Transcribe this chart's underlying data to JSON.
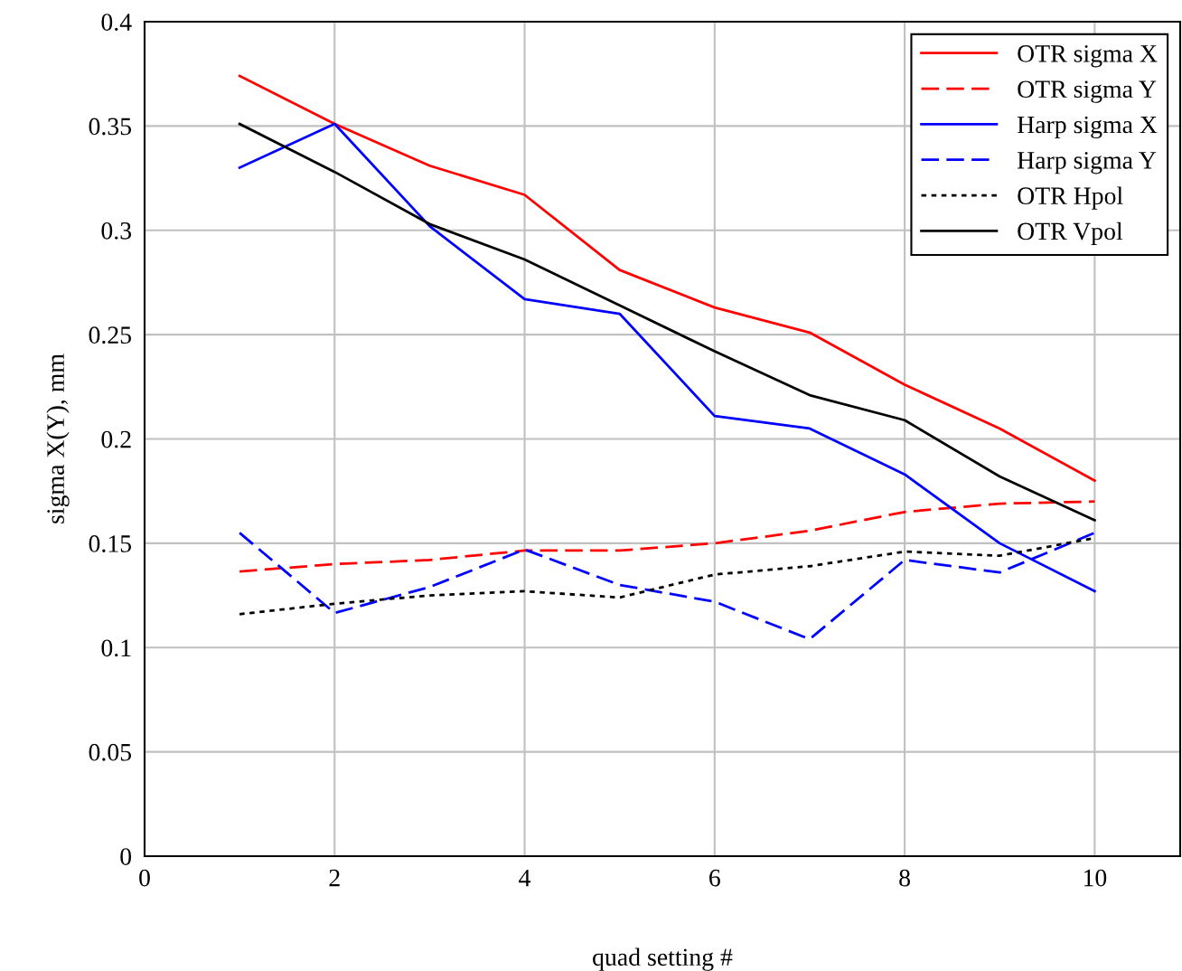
{
  "chart_data": {
    "type": "line",
    "xlabel": "quad setting #",
    "ylabel": "sigma X(Y), mm",
    "x": [
      1,
      2,
      3,
      4,
      5,
      6,
      7,
      8,
      9,
      10
    ],
    "series": [
      {
        "name": "OTR sigma X",
        "color": "#ff0000",
        "line_style": "solid",
        "values": [
          0.374,
          0.351,
          0.331,
          0.317,
          0.281,
          0.263,
          0.251,
          0.226,
          0.205,
          0.18
        ]
      },
      {
        "name": "OTR sigma Y",
        "color": "#ff0000",
        "line_style": "dashed",
        "values": [
          0.1365,
          0.14,
          0.142,
          0.1465,
          0.1465,
          0.15,
          0.156,
          0.165,
          0.169,
          0.17
        ]
      },
      {
        "name": "Harp sigma X",
        "color": "#0000ff",
        "line_style": "solid",
        "values": [
          0.33,
          0.351,
          0.302,
          0.267,
          0.26,
          0.211,
          0.205,
          0.183,
          0.15,
          0.127
        ]
      },
      {
        "name": "Harp sigma Y",
        "color": "#0000ff",
        "line_style": "dashed",
        "values": [
          0.155,
          0.1166,
          0.129,
          0.147,
          0.13,
          0.122,
          0.104,
          0.142,
          0.136,
          0.155
        ]
      },
      {
        "name": "OTR Hpol",
        "color": "#000000",
        "line_style": "dotted",
        "values": [
          0.116,
          0.121,
          0.125,
          0.127,
          0.124,
          0.135,
          0.139,
          0.146,
          0.144,
          0.1525
        ]
      },
      {
        "name": "OTR Vpol",
        "color": "#000000",
        "line_style": "solid",
        "values": [
          0.351,
          0.328,
          0.303,
          0.286,
          0.264,
          0.242,
          0.221,
          0.209,
          0.182,
          0.161
        ]
      }
    ],
    "xlim": [
      0,
      10.9
    ],
    "xticks": [
      0,
      2,
      4,
      6,
      8,
      10
    ],
    "ylim": [
      0,
      0.4
    ],
    "yticks": [
      {
        "value": 0,
        "label": "0"
      },
      0.05,
      0.1,
      0.15,
      0.2,
      0.25,
      0.3,
      0.35,
      0.4
    ],
    "grid": true,
    "legend": "top right",
    "marker": "none"
  }
}
